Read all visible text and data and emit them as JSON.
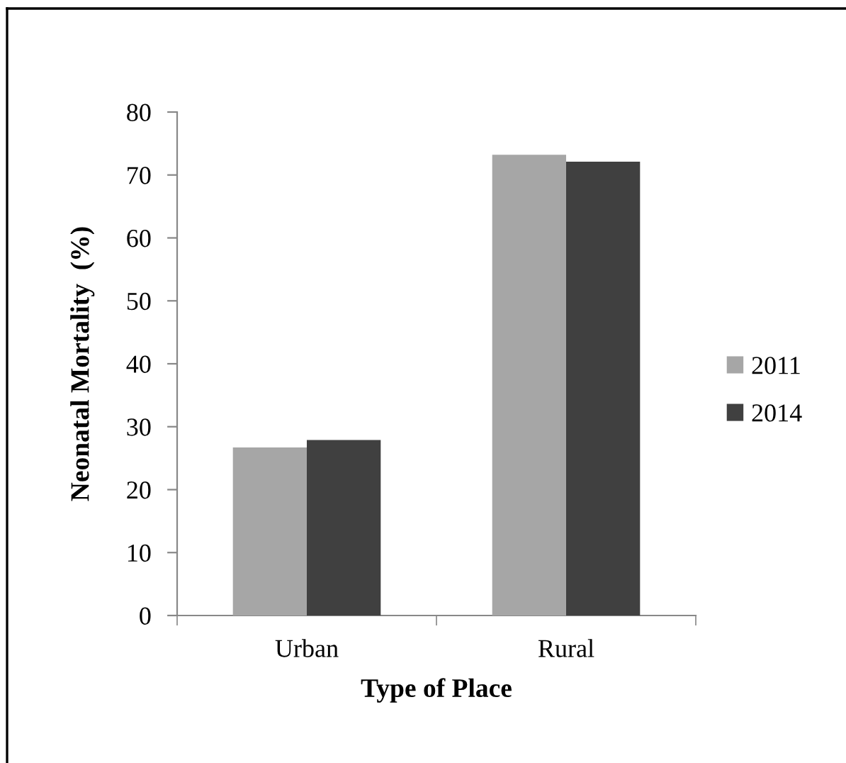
{
  "chart_data": {
    "type": "bar",
    "xlabel": "Type of Place",
    "ylabel": "Neonatal Mortality  (%)",
    "categories": [
      "Urban",
      "Rural"
    ],
    "series": [
      {
        "name": "2011",
        "color": "#a6a6a6",
        "values": [
          26.7,
          73.2
        ]
      },
      {
        "name": "2014",
        "color": "#404040",
        "values": [
          27.9,
          72.1
        ]
      }
    ],
    "ylim": [
      0,
      80
    ],
    "yticks": [
      0,
      10,
      20,
      30,
      40,
      50,
      60,
      70,
      80
    ],
    "legend": "right"
  }
}
